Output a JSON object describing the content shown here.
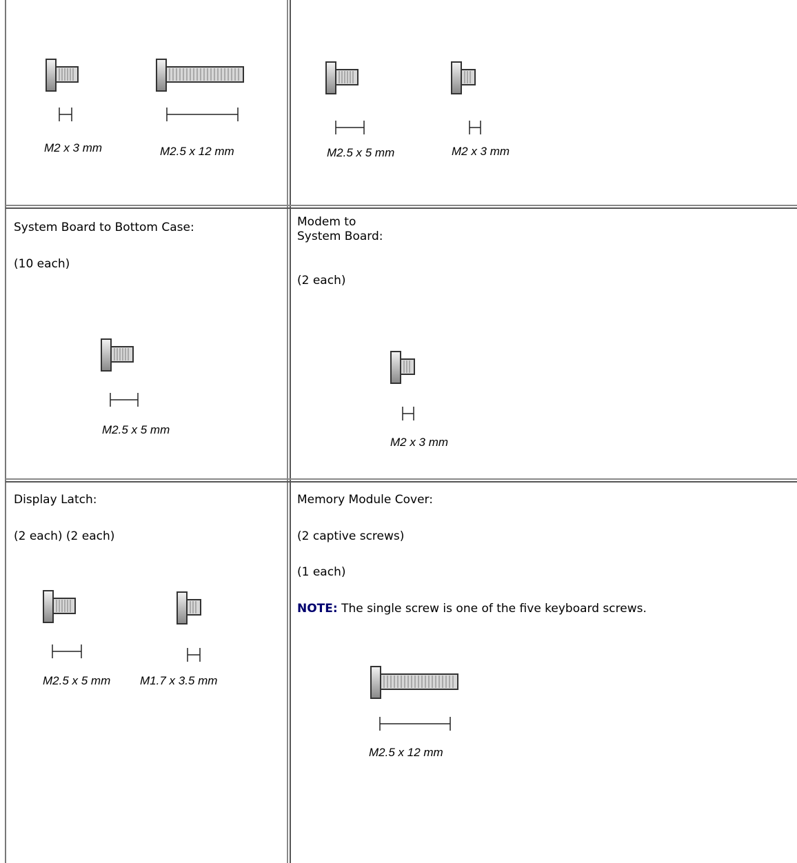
{
  "table": {
    "rows": [
      [
        {
          "screws": [
            {
              "label": "M2 x 3 mm"
            },
            {
              "label": "M2.5 x 12 mm"
            }
          ]
        },
        {
          "screws": [
            {
              "label": "M2.5 x 5 mm"
            },
            {
              "label": "M2 x 3 mm"
            }
          ]
        }
      ],
      [
        {
          "lines": [
            "System Board to Bottom Case:",
            "(10 each)"
          ],
          "screws": [
            {
              "label": "M2.5 x 5 mm"
            }
          ]
        },
        {
          "lines": [
            "Modem to",
            "System Board:",
            "(2 each)"
          ],
          "screws": [
            {
              "label": "M2 x 3 mm"
            }
          ]
        }
      ],
      [
        {
          "lines": [
            "Display Latch:",
            "(2 each) (2 each)"
          ],
          "screws": [
            {
              "label": "M2.5 x 5 mm"
            },
            {
              "label": "M1.7 x 3.5 mm"
            }
          ]
        },
        {
          "lines": [
            "Memory Module Cover:",
            "(2 captive screws)",
            "(1 each)"
          ],
          "note": {
            "label": "NOTE:",
            "text": " The single screw is one of the five keyboard screws."
          },
          "screws": [
            {
              "label": "M2.5 x 12 mm"
            }
          ]
        }
      ]
    ]
  }
}
